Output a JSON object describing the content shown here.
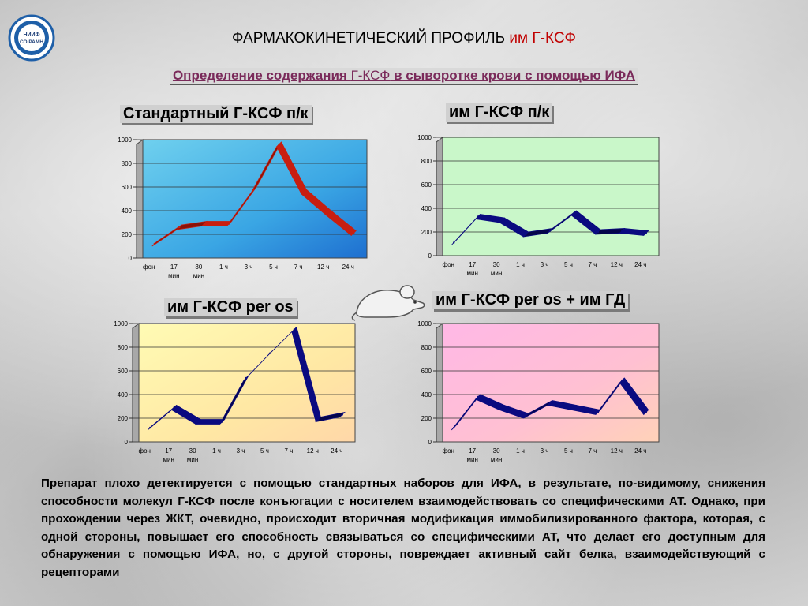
{
  "header": {
    "logo_text_line1": "НИИФ",
    "logo_text_line2": "СО РАМН",
    "title_main": "ФАРМАКОКИНЕТИЧЕСКИЙ ПРОФИЛЬ ",
    "title_accent": "им Г-КСФ",
    "subtitle_part1": "Определение содержания ",
    "subtitle_part2": "Г-КСФ",
    "subtitle_part3": " в сыворотке крови с помощью ИФА"
  },
  "colors": {
    "accent_red": "#c00000",
    "subtitle_color": "#7a2a5a",
    "line_red": "#c81e10",
    "line_blue": "#0a0a80"
  },
  "chart_data": [
    {
      "type": "line",
      "title": "Стандартный Г-КСФ п/к",
      "categories": [
        "фон",
        "17 мин",
        "30 мин",
        "1 ч",
        "3 ч",
        "5 ч",
        "7 ч",
        "12 ч",
        "24 ч"
      ],
      "category_lines": [
        [
          "фон"
        ],
        [
          "17",
          "мин"
        ],
        [
          "30",
          "мин"
        ],
        [
          "1 ч"
        ],
        [
          "3 ч"
        ],
        [
          "5 ч"
        ],
        [
          "7 ч"
        ],
        [
          "12 ч"
        ],
        [
          "24 ч"
        ]
      ],
      "values": [
        120,
        260,
        290,
        290,
        580,
        960,
        560,
        380,
        210
      ],
      "yticks": [
        0,
        200,
        400,
        600,
        800,
        1000
      ],
      "ylim": [
        0,
        1000
      ],
      "background": "blue-gradient",
      "line_color": "#c81e10",
      "grid": true
    },
    {
      "type": "line",
      "title": "им Г-КСФ п/к",
      "categories": [
        "фон",
        "17 мин",
        "30 мин",
        "1 ч",
        "3 ч",
        "5 ч",
        "7 ч",
        "12 ч",
        "24 ч"
      ],
      "category_lines": [
        [
          "фон"
        ],
        [
          "17",
          "мин"
        ],
        [
          "30",
          "мин"
        ],
        [
          "1 ч"
        ],
        [
          "3 ч"
        ],
        [
          "5 ч"
        ],
        [
          "7 ч"
        ],
        [
          "12 ч"
        ],
        [
          "24 ч"
        ]
      ],
      "values": [
        110,
        330,
        300,
        180,
        210,
        360,
        200,
        210,
        190
      ],
      "yticks": [
        0,
        200,
        400,
        600,
        800,
        1000
      ],
      "ylim": [
        0,
        1000
      ],
      "background": "light-green",
      "line_color": "#0a0a80",
      "grid": true
    },
    {
      "type": "line",
      "title": "им Г-КСФ per os",
      "categories": [
        "фон",
        "17 мин",
        "30 мин",
        "1 ч",
        "3 ч",
        "5 ч",
        "7 ч",
        "12 ч",
        "24 ч"
      ],
      "category_lines": [
        [
          "фон"
        ],
        [
          "17",
          "мин"
        ],
        [
          "30",
          "мин"
        ],
        [
          "1 ч"
        ],
        [
          "3 ч"
        ],
        [
          "5 ч"
        ],
        [
          "7 ч"
        ],
        [
          "12 ч"
        ],
        [
          "24 ч"
        ]
      ],
      "values": [
        120,
        290,
        170,
        170,
        540,
        750,
        950,
        190,
        230
      ],
      "yticks": [
        0,
        200,
        400,
        600,
        800,
        1000
      ],
      "ylim": [
        0,
        1000
      ],
      "background": "yellow-gradient",
      "line_color": "#0a0a80",
      "grid": true
    },
    {
      "type": "line",
      "title": "им Г-КСФ per os + им ГД",
      "categories": [
        "фон",
        "17 мин",
        "30 мин",
        "1 ч",
        "3 ч",
        "5 ч",
        "7 ч",
        "12 ч",
        "24 ч"
      ],
      "category_lines": [
        [
          "фон"
        ],
        [
          "17",
          "мин"
        ],
        [
          "30",
          "мин"
        ],
        [
          "1 ч"
        ],
        [
          "3 ч"
        ],
        [
          "5 ч"
        ],
        [
          "7 ч"
        ],
        [
          "12 ч"
        ],
        [
          "24 ч"
        ]
      ],
      "values": [
        120,
        380,
        290,
        220,
        330,
        290,
        250,
        520,
        250
      ],
      "yticks": [
        0,
        200,
        400,
        600,
        800,
        1000
      ],
      "ylim": [
        0,
        1000
      ],
      "background": "pink-gradient",
      "line_color": "#0a0a80",
      "grid": true
    }
  ],
  "description": "Препарат плохо детектируется с помощью стандартных наборов для ИФА, в результате, по-видимому, снижения способности молекул Г-КСФ после конъюгации с носителем взаимодействовать со специфическими АТ. Однако, при прохождении через ЖКТ, очевидно, происходит вторичная модификация иммобилизированного фактора, которая, с одной стороны, повышает его способность связываться со специфическими АТ, что делает его доступным для обнаружения с помощью ИФА, но, с другой стороны, повреждает активный сайт белка, взаимодействующий с рецепторами"
}
